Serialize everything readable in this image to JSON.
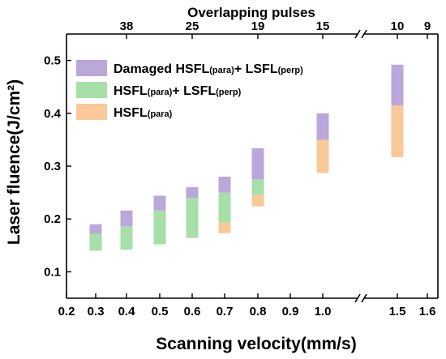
{
  "chart_data": {
    "type": "bar",
    "xlabel": "Scanning velocity(mm/s)",
    "ylabel": "Laser fluence(J/cm²)",
    "top_axis_title": "Overlapping pulses",
    "x_ticks": [
      "0.2",
      "0.3",
      "0.4",
      "0.5",
      "0.6",
      "0.7",
      "0.8",
      "0.9",
      "1.0",
      "1.5",
      "1.6"
    ],
    "y_ticks": [
      "0.1",
      "0.2",
      "0.3",
      "0.4",
      "0.5"
    ],
    "ylim": [
      0.05,
      0.55
    ],
    "top_ticks": [
      "38",
      "25",
      "19",
      "15",
      "10",
      "9"
    ],
    "axis_break": "between 1.0 and 1.5",
    "legend": [
      {
        "name": "Damaged HSFL",
        "sub1": "(para)",
        "mid": "+ LSFL",
        "sub2": "(perp)",
        "color": "#b9a8d9"
      },
      {
        "name": "HSFL",
        "sub1": "(para)",
        "mid": "+ LSFL",
        "sub2": "(perp)",
        "color": "#a6dfa8"
      },
      {
        "name": "HSFL",
        "sub1": "(para)",
        "mid": "",
        "sub2": "",
        "color": "#f9c99a"
      }
    ],
    "colors": {
      "damaged": "#b9a8d9",
      "mixed": "#a6dfa8",
      "hsfl": "#f9c99a"
    },
    "ranges": [
      {
        "x": "0.3",
        "hsfl": null,
        "mixed": [
          0.14,
          0.172
        ],
        "damaged": [
          0.172,
          0.19
        ]
      },
      {
        "x": "0.4",
        "hsfl": null,
        "mixed": [
          0.142,
          0.186
        ],
        "damaged": [
          0.186,
          0.216
        ]
      },
      {
        "x": "0.5",
        "hsfl": null,
        "mixed": [
          0.152,
          0.216
        ],
        "damaged": [
          0.216,
          0.244
        ]
      },
      {
        "x": "0.6",
        "hsfl": null,
        "mixed": [
          0.164,
          0.24
        ],
        "damaged": [
          0.24,
          0.26
        ]
      },
      {
        "x": "0.7",
        "hsfl": [
          0.173,
          0.193
        ],
        "mixed": [
          0.193,
          0.25
        ],
        "damaged": [
          0.25,
          0.28
        ]
      },
      {
        "x": "0.8",
        "hsfl": [
          0.224,
          0.245
        ],
        "mixed": [
          0.245,
          0.275
        ],
        "damaged": [
          0.275,
          0.334
        ]
      },
      {
        "x": "1.0",
        "hsfl": [
          0.287,
          0.35
        ],
        "mixed": null,
        "damaged": [
          0.35,
          0.4
        ]
      },
      {
        "x": "1.5",
        "hsfl": [
          0.317,
          0.415
        ],
        "mixed": null,
        "damaged": [
          0.415,
          0.492
        ]
      }
    ]
  }
}
